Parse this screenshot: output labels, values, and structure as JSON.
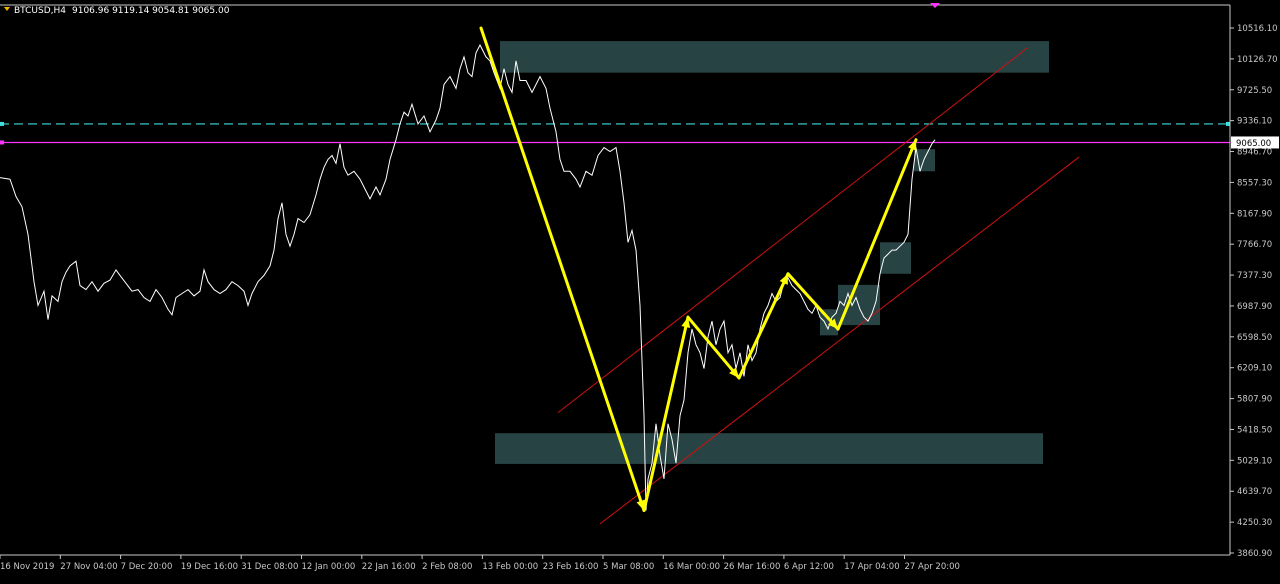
{
  "header": {
    "symbol": "BTCUSD,H4",
    "ohlc": "9106.96 9119.14 9054.81 9065.00"
  },
  "colors": {
    "background": "#000000",
    "price_line": "#ffffff",
    "axis": "#c8c8c8",
    "zigzag": "#ffff00",
    "zone": "#2f4f4f",
    "channel": "#cc1111",
    "cyan_level": "#44dddd",
    "price_level": "#ff33ff",
    "price_label_bg": "#ffffff",
    "price_label_text": "#000000",
    "header_marker": "#f5b400"
  },
  "chart_data": {
    "type": "line",
    "title": "BTCUSD,H4",
    "xlabel": "",
    "ylabel": "",
    "ylim": [
      3860.9,
      10516.1
    ],
    "y_ticks": [
      "10516.10",
      "10126.70",
      "9725.50",
      "9336.10",
      "8946.70",
      "8557.30",
      "8167.90",
      "7766.70",
      "7377.30",
      "6987.90",
      "6598.50",
      "6209.10",
      "5807.90",
      "5418.50",
      "5029.10",
      "4639.70",
      "4250.30",
      "3860.90"
    ],
    "x_ticks": [
      "16 Nov 2019",
      "27 Nov 04:00",
      "7 Dec 20:00",
      "19 Dec 16:00",
      "31 Dec 08:00",
      "12 Jan 00:00",
      "22 Jan 16:00",
      "2 Feb 08:00",
      "13 Feb 00:00",
      "23 Feb 16:00",
      "5 Mar 08:00",
      "16 Mar 00:00",
      "26 Mar 16:00",
      "6 Apr 12:00",
      "17 Apr 04:00",
      "27 Apr 20:00"
    ],
    "current_price": "9065.00",
    "cyan_level": 9300,
    "price_series": [
      [
        0,
        8620
      ],
      [
        10,
        8600
      ],
      [
        16,
        8380
      ],
      [
        22,
        8250
      ],
      [
        28,
        7900
      ],
      [
        34,
        7300
      ],
      [
        38,
        7000
      ],
      [
        44,
        7180
      ],
      [
        48,
        6820
      ],
      [
        52,
        7120
      ],
      [
        58,
        7050
      ],
      [
        62,
        7300
      ],
      [
        66,
        7420
      ],
      [
        70,
        7500
      ],
      [
        76,
        7560
      ],
      [
        80,
        7250
      ],
      [
        86,
        7200
      ],
      [
        92,
        7300
      ],
      [
        98,
        7180
      ],
      [
        104,
        7280
      ],
      [
        110,
        7320
      ],
      [
        116,
        7450
      ],
      [
        120,
        7380
      ],
      [
        126,
        7280
      ],
      [
        132,
        7180
      ],
      [
        138,
        7200
      ],
      [
        144,
        7100
      ],
      [
        150,
        7050
      ],
      [
        156,
        7200
      ],
      [
        162,
        7100
      ],
      [
        168,
        6950
      ],
      [
        172,
        6880
      ],
      [
        176,
        7100
      ],
      [
        182,
        7150
      ],
      [
        188,
        7200
      ],
      [
        194,
        7120
      ],
      [
        200,
        7180
      ],
      [
        204,
        7450
      ],
      [
        208,
        7300
      ],
      [
        214,
        7200
      ],
      [
        220,
        7150
      ],
      [
        226,
        7200
      ],
      [
        232,
        7300
      ],
      [
        238,
        7250
      ],
      [
        244,
        7180
      ],
      [
        248,
        7000
      ],
      [
        252,
        7150
      ],
      [
        258,
        7300
      ],
      [
        264,
        7380
      ],
      [
        270,
        7500
      ],
      [
        274,
        7700
      ],
      [
        278,
        8100
      ],
      [
        282,
        8300
      ],
      [
        286,
        7900
      ],
      [
        290,
        7750
      ],
      [
        294,
        7900
      ],
      [
        298,
        8100
      ],
      [
        304,
        8050
      ],
      [
        310,
        8150
      ],
      [
        316,
        8400
      ],
      [
        320,
        8600
      ],
      [
        324,
        8750
      ],
      [
        328,
        8850
      ],
      [
        332,
        8900
      ],
      [
        336,
        8800
      ],
      [
        340,
        9050
      ],
      [
        344,
        8750
      ],
      [
        348,
        8650
      ],
      [
        354,
        8700
      ],
      [
        360,
        8600
      ],
      [
        366,
        8450
      ],
      [
        370,
        8350
      ],
      [
        376,
        8500
      ],
      [
        380,
        8400
      ],
      [
        386,
        8600
      ],
      [
        390,
        8850
      ],
      [
        396,
        9100
      ],
      [
        400,
        9300
      ],
      [
        404,
        9450
      ],
      [
        408,
        9400
      ],
      [
        412,
        9550
      ],
      [
        418,
        9300
      ],
      [
        424,
        9400
      ],
      [
        430,
        9200
      ],
      [
        436,
        9350
      ],
      [
        440,
        9500
      ],
      [
        444,
        9800
      ],
      [
        450,
        9900
      ],
      [
        456,
        9750
      ],
      [
        460,
        10000
      ],
      [
        464,
        10150
      ],
      [
        468,
        9950
      ],
      [
        472,
        9900
      ],
      [
        476,
        10200
      ],
      [
        480,
        10300
      ],
      [
        486,
        10150
      ],
      [
        490,
        10100
      ],
      [
        494,
        9950
      ],
      [
        500,
        9750
      ],
      [
        504,
        10000
      ],
      [
        508,
        9800
      ],
      [
        512,
        9700
      ],
      [
        516,
        10100
      ],
      [
        520,
        9850
      ],
      [
        526,
        9850
      ],
      [
        532,
        9700
      ],
      [
        536,
        9800
      ],
      [
        540,
        9900
      ],
      [
        546,
        9750
      ],
      [
        550,
        9500
      ],
      [
        556,
        9200
      ],
      [
        560,
        8850
      ],
      [
        564,
        8700
      ],
      [
        570,
        8700
      ],
      [
        576,
        8600
      ],
      [
        580,
        8500
      ],
      [
        586,
        8700
      ],
      [
        592,
        8650
      ],
      [
        598,
        8900
      ],
      [
        604,
        9000
      ],
      [
        610,
        8950
      ],
      [
        616,
        9000
      ],
      [
        620,
        8700
      ],
      [
        624,
        8300
      ],
      [
        628,
        7800
      ],
      [
        632,
        7950
      ],
      [
        636,
        7700
      ],
      [
        640,
        7000
      ],
      [
        644,
        5600
      ],
      [
        646,
        4400
      ],
      [
        648,
        4800
      ],
      [
        652,
        5000
      ],
      [
        656,
        5500
      ],
      [
        660,
        5100
      ],
      [
        664,
        4800
      ],
      [
        668,
        5500
      ],
      [
        672,
        5300
      ],
      [
        676,
        5000
      ],
      [
        680,
        5600
      ],
      [
        684,
        5800
      ],
      [
        688,
        6400
      ],
      [
        692,
        6700
      ],
      [
        696,
        6500
      ],
      [
        700,
        6400
      ],
      [
        704,
        6200
      ],
      [
        708,
        6600
      ],
      [
        712,
        6800
      ],
      [
        716,
        6500
      ],
      [
        720,
        6700
      ],
      [
        724,
        6800
      ],
      [
        728,
        6400
      ],
      [
        732,
        6500
      ],
      [
        736,
        6200
      ],
      [
        740,
        6400
      ],
      [
        744,
        6100
      ],
      [
        748,
        6500
      ],
      [
        752,
        6300
      ],
      [
        756,
        6400
      ],
      [
        760,
        6700
      ],
      [
        764,
        6900
      ],
      [
        768,
        7000
      ],
      [
        772,
        7150
      ],
      [
        776,
        7050
      ],
      [
        780,
        7100
      ],
      [
        784,
        7300
      ],
      [
        788,
        7350
      ],
      [
        792,
        7250
      ],
      [
        796,
        7200
      ],
      [
        800,
        7150
      ],
      [
        804,
        7050
      ],
      [
        808,
        6950
      ],
      [
        812,
        6900
      ],
      [
        816,
        7000
      ],
      [
        820,
        6850
      ],
      [
        824,
        6800
      ],
      [
        828,
        6700
      ],
      [
        832,
        6850
      ],
      [
        836,
        6900
      ],
      [
        840,
        7050
      ],
      [
        844,
        7000
      ],
      [
        848,
        7150
      ],
      [
        852,
        7000
      ],
      [
        856,
        7100
      ],
      [
        860,
        6950
      ],
      [
        864,
        6850
      ],
      [
        868,
        6800
      ],
      [
        872,
        6900
      ],
      [
        876,
        7050
      ],
      [
        880,
        7400
      ],
      [
        884,
        7600
      ],
      [
        888,
        7650
      ],
      [
        892,
        7700
      ],
      [
        896,
        7700
      ],
      [
        900,
        7750
      ],
      [
        904,
        7800
      ],
      [
        908,
        7900
      ],
      [
        912,
        8600
      ],
      [
        916,
        9000
      ],
      [
        920,
        8700
      ],
      [
        924,
        8850
      ],
      [
        928,
        8950
      ],
      [
        932,
        9050
      ],
      [
        935,
        9100
      ]
    ],
    "zigzag": [
      [
        481,
        10516
      ],
      [
        644,
        4400
      ],
      [
        688,
        6850
      ],
      [
        739,
        6080
      ],
      [
        788,
        7400
      ],
      [
        838,
        6700
      ],
      [
        916,
        9100
      ]
    ],
    "zones": [
      {
        "x1": 500,
        "x2": 1049,
        "y1": 9950,
        "y2": 10350
      },
      {
        "x1": 495,
        "x2": 1043,
        "y1": 4990,
        "y2": 5380
      },
      {
        "x1": 880,
        "x2": 911,
        "y1": 7400,
        "y2": 7800
      },
      {
        "x1": 914,
        "x2": 935,
        "y1": 8700,
        "y2": 8980
      },
      {
        "x1": 838,
        "x2": 880,
        "y1": 6750,
        "y2": 7260
      },
      {
        "x1": 820,
        "x2": 838,
        "y1": 6620,
        "y2": 6950
      }
    ],
    "channel_lines": [
      {
        "x1": 558,
        "y1": 5640,
        "x2": 1028,
        "y2": 10270
      },
      {
        "x1": 600,
        "y1": 4230,
        "x2": 1079,
        "y2": 8880
      }
    ]
  }
}
